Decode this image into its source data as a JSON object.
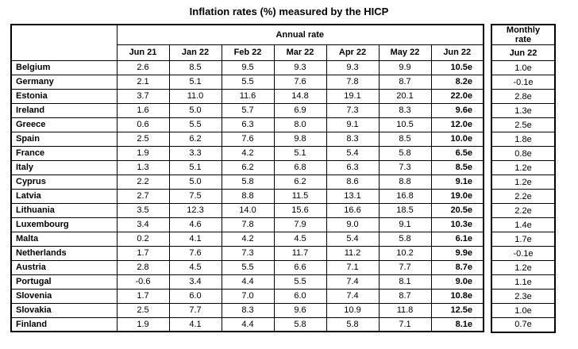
{
  "chart_data": {
    "type": "table",
    "title": "Inflation rates (%) measured by the HICP",
    "annual_group_header": "Annual rate",
    "monthly_group_header": "Monthly rate",
    "annual_columns": [
      "Jun 21",
      "Jan 22",
      "Feb 22",
      "Mar 22",
      "Apr 22",
      "May 22",
      "Jun 22"
    ],
    "monthly_column": "Jun 22",
    "rows": [
      {
        "country": "Belgium",
        "annual": [
          "2.6",
          "8.5",
          "9.5",
          "9.3",
          "9.3",
          "9.9",
          "10.5e"
        ],
        "monthly": "1.0e"
      },
      {
        "country": "Germany",
        "annual": [
          "2.1",
          "5.1",
          "5.5",
          "7.6",
          "7.8",
          "8.7",
          "8.2e"
        ],
        "monthly": "-0.1e"
      },
      {
        "country": "Estonia",
        "annual": [
          "3.7",
          "11.0",
          "11.6",
          "14.8",
          "19.1",
          "20.1",
          "22.0e"
        ],
        "monthly": "2.8e"
      },
      {
        "country": "Ireland",
        "annual": [
          "1.6",
          "5.0",
          "5.7",
          "6.9",
          "7.3",
          "8.3",
          "9.6e"
        ],
        "monthly": "1.3e"
      },
      {
        "country": "Greece",
        "annual": [
          "0.6",
          "5.5",
          "6.3",
          "8.0",
          "9.1",
          "10.5",
          "12.0e"
        ],
        "monthly": "2.5e"
      },
      {
        "country": "Spain",
        "annual": [
          "2.5",
          "6.2",
          "7.6",
          "9.8",
          "8.3",
          "8.5",
          "10.0e"
        ],
        "monthly": "1.8e"
      },
      {
        "country": "France",
        "annual": [
          "1.9",
          "3.3",
          "4.2",
          "5.1",
          "5.4",
          "5.8",
          "6.5e"
        ],
        "monthly": "0.8e"
      },
      {
        "country": "Italy",
        "annual": [
          "1.3",
          "5.1",
          "6.2",
          "6.8",
          "6.3",
          "7.3",
          "8.5e"
        ],
        "monthly": "1.2e"
      },
      {
        "country": "Cyprus",
        "annual": [
          "2.2",
          "5.0",
          "5.8",
          "6.2",
          "8.6",
          "8.8",
          "9.1e"
        ],
        "monthly": "1.2e"
      },
      {
        "country": "Latvia",
        "annual": [
          "2.7",
          "7.5",
          "8.8",
          "11.5",
          "13.1",
          "16.8",
          "19.0e"
        ],
        "monthly": "2.2e"
      },
      {
        "country": "Lithuania",
        "annual": [
          "3.5",
          "12.3",
          "14.0",
          "15.6",
          "16.6",
          "18.5",
          "20.5e"
        ],
        "monthly": "2.2e"
      },
      {
        "country": "Luxembourg",
        "annual": [
          "3.4",
          "4.6",
          "7.8",
          "7.9",
          "9.0",
          "9.1",
          "10.3e"
        ],
        "monthly": "1.4e"
      },
      {
        "country": "Malta",
        "annual": [
          "0.2",
          "4.1",
          "4.2",
          "4.5",
          "5.4",
          "5.8",
          "6.1e"
        ],
        "monthly": "1.7e"
      },
      {
        "country": "Netherlands",
        "annual": [
          "1.7",
          "7.6",
          "7.3",
          "11.7",
          "11.2",
          "10.2",
          "9.9e"
        ],
        "monthly": "-0.1e"
      },
      {
        "country": "Austria",
        "annual": [
          "2.8",
          "4.5",
          "5.5",
          "6.6",
          "7.1",
          "7.7",
          "8.7e"
        ],
        "monthly": "1.2e"
      },
      {
        "country": "Portugal",
        "annual": [
          "-0.6",
          "3.4",
          "4.4",
          "5.5",
          "7.4",
          "8.1",
          "9.0e"
        ],
        "monthly": "1.1e"
      },
      {
        "country": "Slovenia",
        "annual": [
          "1.7",
          "6.0",
          "7.0",
          "6.0",
          "7.4",
          "8.7",
          "10.8e"
        ],
        "monthly": "2.3e"
      },
      {
        "country": "Slovakia",
        "annual": [
          "2.5",
          "7.7",
          "8.3",
          "9.6",
          "10.9",
          "11.8",
          "12.5e"
        ],
        "monthly": "1.0e"
      },
      {
        "country": "Finland",
        "annual": [
          "1.9",
          "4.1",
          "4.4",
          "5.8",
          "5.8",
          "7.1",
          "8.1e"
        ],
        "monthly": "0.7e"
      }
    ]
  }
}
